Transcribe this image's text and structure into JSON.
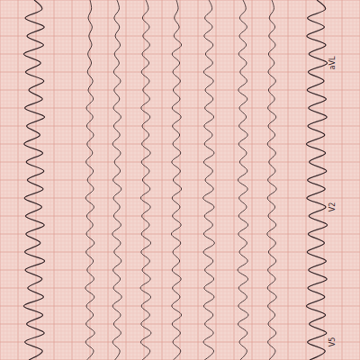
{
  "chart_data": {
    "type": "line",
    "grid": true,
    "tick_labels": false,
    "color": "#3b2b2e",
    "xlim": [
      0,
      40
    ],
    "ylim": [
      -4,
      4
    ],
    "x": [
      0,
      1,
      2,
      3,
      4,
      5,
      6,
      7,
      8,
      9,
      10,
      11,
      12,
      13,
      14,
      15,
      16,
      17,
      18,
      19,
      20,
      21,
      22,
      23,
      24,
      25,
      26,
      27,
      28,
      29,
      30,
      31,
      32,
      33,
      34,
      35,
      36,
      37,
      38,
      39,
      40
    ],
    "series": [
      {
        "values": [
          0,
          2.2,
          -2.5,
          2.8,
          -2,
          2.6,
          -2.9,
          1.8,
          -2.4,
          2.7,
          -1.5,
          2.3,
          -2.6,
          2.9,
          -2.1,
          1.6,
          -2.8,
          2.4,
          -2.2,
          2.7,
          -1.9,
          2.5,
          -2.7,
          2.1,
          -2.4,
          2.8,
          -2.3,
          1.7,
          -2.6,
          2.9,
          -2.5,
          2.2,
          -1.8,
          2.6,
          -2.9,
          2.4,
          -2.1,
          2.8,
          -2.6,
          2.3,
          -1.5
        ]
      },
      {
        "values": [
          0,
          0.4,
          -0.5,
          0.6,
          -0.3,
          0.5,
          -0.6,
          0.4,
          -0.7,
          0.8,
          -0.5,
          0.9,
          -1,
          0.8,
          -0.9,
          1,
          -0.8,
          0.7,
          -1.1,
          0.9,
          -0.7,
          1,
          -1.2,
          1.1,
          -0.9,
          0.8,
          -1,
          1.2,
          -1.1,
          0.9,
          -0.8,
          1.1,
          -1.3,
          1.2,
          -1,
          0.9,
          -1.1,
          1.3,
          -1.2,
          1,
          -0.9
        ]
      },
      {
        "values": [
          0,
          0.6,
          -0.8,
          0.7,
          -0.5,
          0.9,
          -0.7,
          0.6,
          -0.9,
          1,
          -0.8,
          0.7,
          -1,
          1.1,
          -0.9,
          0.8,
          -1.2,
          1,
          -0.7,
          0.9,
          -1.1,
          1.2,
          -1,
          0.8,
          -0.9,
          1.1,
          -1.3,
          1,
          -0.8,
          1.2,
          -1.1,
          0.9,
          -1,
          1.3,
          -1.2,
          1,
          -0.9,
          1.1,
          -1.2,
          0.8,
          -0.6
        ]
      },
      {
        "values": [
          0,
          0.7,
          -0.9,
          1,
          -0.8,
          1.1,
          -1,
          0.9,
          -1.2,
          1,
          -0.8,
          1.1,
          -1.3,
          1.2,
          -1,
          0.9,
          -1.1,
          1.3,
          -1.2,
          1,
          -0.9,
          1.2,
          -1.4,
          1.3,
          -1.1,
          1,
          -1.2,
          1.4,
          -1.3,
          1.1,
          -1,
          1.3,
          -1.5,
          1.4,
          -1.2,
          1.1,
          -1.3,
          1.5,
          -1.4,
          1.2,
          -1
        ]
      },
      {
        "values": [
          0,
          0.5,
          -0.6,
          0.8,
          -0.7,
          1.4,
          -1.2,
          0.9,
          -1,
          1.1,
          -0.9,
          1,
          -1.2,
          1.3,
          -1.1,
          0.9,
          -1,
          1.2,
          -1.3,
          1.1,
          -0.9,
          1.4,
          -1.2,
          1,
          -1.1,
          1.3,
          -1.4,
          1.2,
          -1,
          0.9,
          -1.2,
          1.3,
          -1.1,
          1,
          -1.3,
          1.4,
          -1.2,
          1.1,
          -1,
          1.2,
          -0.9
        ]
      },
      {
        "values": [
          0,
          0.9,
          -1.1,
          1,
          -1.3,
          1.2,
          -0.9,
          1.1,
          -1.4,
          1.3,
          -1,
          1.2,
          -1.1,
          1.4,
          -1.3,
          1,
          -1.2,
          1.5,
          -1.4,
          1.1,
          -1,
          1.3,
          -1.6,
          1.5,
          -1.2,
          1.1,
          -1.4,
          1.6,
          -1.5,
          1.2,
          -1.1,
          1.4,
          -1.3,
          1.5,
          -1.4,
          1.2,
          -1.1,
          1.3,
          -1.5,
          1.4,
          -1.2
        ]
      },
      {
        "values": [
          0,
          0.8,
          -0.9,
          1.1,
          -1,
          0.9,
          -1.2,
          1,
          -0.8,
          1.1,
          -1.3,
          1.2,
          -1,
          0.9,
          -1.1,
          1.3,
          -1.2,
          1,
          -0.9,
          1.2,
          -1.4,
          1.3,
          -1.1,
          1,
          -1.2,
          1.4,
          -1.3,
          1.1,
          -1,
          1.3,
          -1.5,
          1.4,
          -1.2,
          1.1,
          -1.3,
          1.5,
          -1.4,
          1.2,
          -1,
          1.1,
          -0.8
        ]
      },
      {
        "values": [
          0,
          0.6,
          -0.7,
          0.9,
          -0.8,
          1,
          -0.9,
          0.7,
          -1,
          1.1,
          -0.9,
          0.8,
          -1.1,
          1.2,
          -1,
          0.9,
          -1.2,
          1.1,
          -0.8,
          1,
          -1.1,
          1.3,
          -1.2,
          0.9,
          -1,
          1.2,
          -1.3,
          1.1,
          -0.9,
          1.2,
          -1.1,
          1,
          -1.2,
          1.3,
          -1.1,
          0.9,
          -1,
          1.2,
          -1.1,
          1,
          -0.8
        ]
      },
      {
        "values": [
          0,
          2.4,
          -2.6,
          2.1,
          -2.8,
          2.5,
          -2.2,
          2.9,
          -2.4,
          2,
          -2.7,
          2.6,
          -2.3,
          2.8,
          -2.5,
          2.2,
          -2.9,
          2.4,
          -2.1,
          2.7,
          -2.6,
          2.3,
          -2.8,
          2.5,
          -2.2,
          2.9,
          -2.4,
          2.1,
          -2.7,
          2.6,
          -2.3,
          2.8,
          -2.5,
          2.2,
          -2.9,
          2.4,
          -2.1,
          2.7,
          -2.6,
          2.3,
          -2
        ]
      }
    ],
    "annotations": [
      {
        "text": "aVL",
        "x": 7,
        "series": 8
      },
      {
        "text": "V2",
        "x": 23,
        "series": 8
      },
      {
        "text": "V5",
        "x": 38,
        "series": 8
      }
    ]
  }
}
